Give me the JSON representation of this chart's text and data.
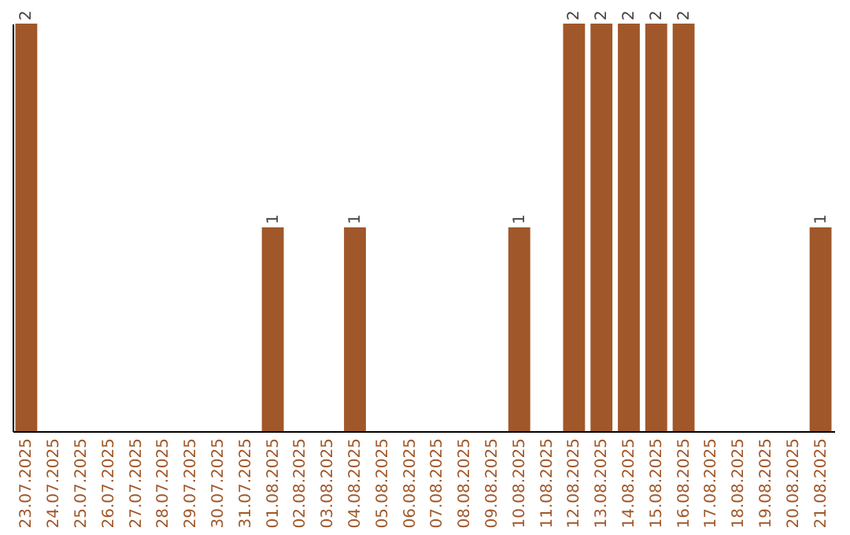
{
  "chart_data": {
    "type": "bar",
    "categories": [
      "23.07.2025",
      "24.07.2025",
      "25.07.2025",
      "26.07.2025",
      "27.07.2025",
      "28.07.2025",
      "29.07.2025",
      "30.07.2025",
      "31.07.2025",
      "01.08.2025",
      "02.08.2025",
      "03.08.2025",
      "04.08.2025",
      "05.08.2025",
      "06.08.2025",
      "07.08.2025",
      "08.08.2025",
      "09.08.2025",
      "10.08.2025",
      "11.08.2025",
      "12.08.2025",
      "13.08.2025",
      "14.08.2025",
      "15.08.2025",
      "16.08.2025",
      "17.08.2025",
      "18.08.2025",
      "19.08.2025",
      "20.08.2025",
      "21.08.2025"
    ],
    "values": [
      2,
      0,
      0,
      0,
      0,
      0,
      0,
      0,
      0,
      1,
      0,
      0,
      1,
      0,
      0,
      0,
      0,
      0,
      1,
      0,
      2,
      2,
      2,
      2,
      2,
      0,
      0,
      0,
      0,
      1
    ],
    "value_labels": [
      "2",
      null,
      null,
      null,
      null,
      null,
      null,
      null,
      null,
      "1",
      null,
      null,
      "1",
      null,
      null,
      null,
      null,
      null,
      "1",
      null,
      "2",
      "2",
      "2",
      "2",
      "2",
      null,
      null,
      null,
      null,
      "1"
    ],
    "color": "#a0582a",
    "tick_labels": "x",
    "grid": false
  }
}
